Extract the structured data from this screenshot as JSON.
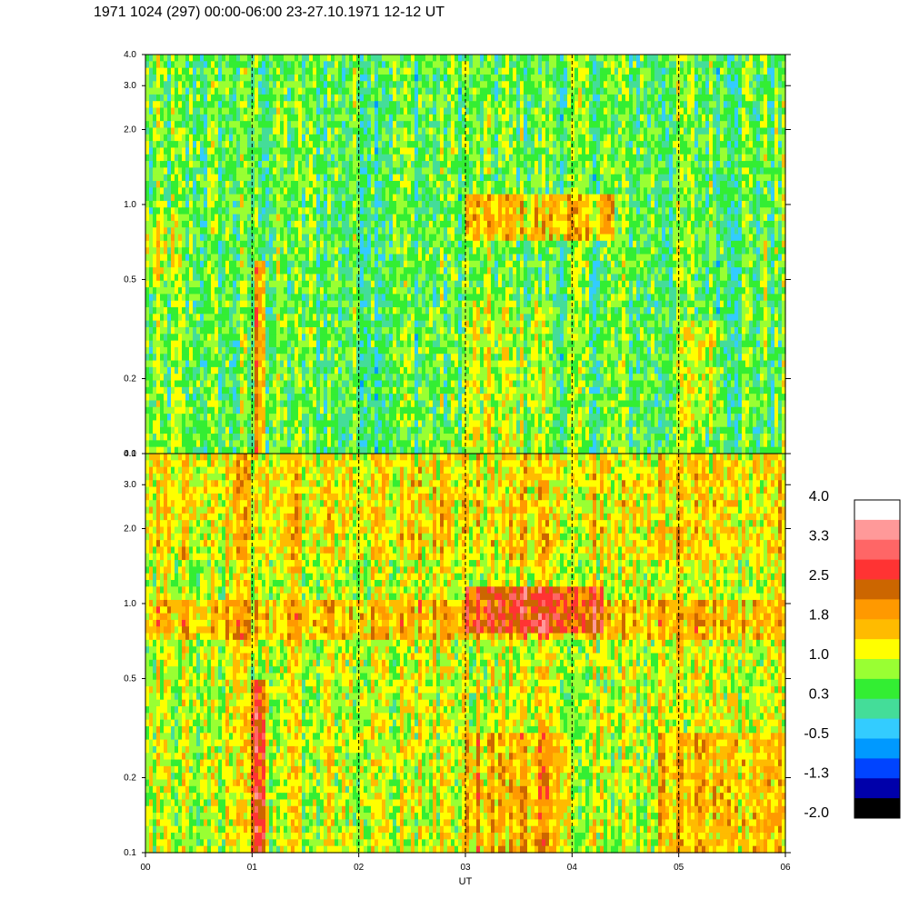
{
  "title": "1971 1024 (297) 00:00-06:00 23-27.10.1971  12-12 UT",
  "chart_data": {
    "type": "heatmap",
    "title": "1971 1024 (297) 00:00-06:00 23-27.10.1971  12-12 UT",
    "xlabel": "UT",
    "x_ticks": [
      "00",
      "01",
      "02",
      "03",
      "04",
      "05",
      "06"
    ],
    "xlim": [
      0,
      6
    ],
    "y_scale": "log",
    "ylim": [
      0.1,
      4.0
    ],
    "y_ticks": [
      0.1,
      0.2,
      0.5,
      1.0,
      2.0,
      3.0,
      4.0
    ],
    "y_tick_labels": [
      "0.1",
      "0.2",
      "0.5",
      "1.0",
      "2.0",
      "3.0",
      "4.0"
    ],
    "panels": [
      {
        "name": "upper",
        "background_level": 0.5,
        "features": [
          {
            "x": [
              1.02,
              1.12
            ],
            "y": [
              0.1,
              0.6
            ],
            "level": 1.9
          },
          {
            "x": [
              3.0,
              4.4
            ],
            "y": [
              0.7,
              1.1
            ],
            "level": 1.5
          },
          {
            "x": [
              0.0,
              0.35
            ],
            "y": [
              0.5,
              0.9
            ],
            "level": 0.9
          },
          {
            "x": [
              3.0,
              3.8
            ],
            "y": [
              0.1,
              0.4
            ],
            "level": 0.9
          },
          {
            "x": [
              5.0,
              5.4
            ],
            "y": [
              0.12,
              0.35
            ],
            "level": 1.0
          },
          {
            "x": [
              1.5,
              2.5
            ],
            "y": [
              0.15,
              0.5
            ],
            "level": -0.4
          }
        ]
      },
      {
        "name": "lower",
        "background_level": 1.0,
        "features": [
          {
            "x": [
              1.0,
              1.13
            ],
            "y": [
              0.1,
              0.5
            ],
            "level": 2.7
          },
          {
            "x": [
              3.0,
              4.3
            ],
            "y": [
              0.75,
              1.2
            ],
            "level": 2.5
          },
          {
            "x": [
              0.0,
              6.0
            ],
            "y": [
              0.7,
              1.05
            ],
            "level": 1.6
          },
          {
            "x": [
              3.0,
              4.0
            ],
            "y": [
              0.1,
              0.3
            ],
            "level": 1.6
          },
          {
            "x": [
              4.8,
              6.0
            ],
            "y": [
              0.1,
              0.3
            ],
            "level": 1.5
          },
          {
            "x": [
              0.0,
              6.0
            ],
            "y": [
              1.5,
              4.0
            ],
            "level": 1.3
          }
        ]
      }
    ],
    "vertical_dashed_lines": [
      1,
      2,
      3,
      4,
      5
    ],
    "colorbar": {
      "tick_labels": [
        "4.0",
        "3.3",
        "2.5",
        "1.8",
        "1.0",
        "0.3",
        "-0.5",
        "-1.3",
        "-2.0"
      ],
      "colors_top_to_bottom": [
        "#ffffff",
        "#ff9999",
        "#ff6666",
        "#ff3333",
        "#cc6600",
        "#ff9900",
        "#ffbb00",
        "#ffff00",
        "#99ff33",
        "#33ee33",
        "#44dd99",
        "#33ccff",
        "#0099ff",
        "#0044ff",
        "#0000aa",
        "#000000"
      ]
    }
  }
}
